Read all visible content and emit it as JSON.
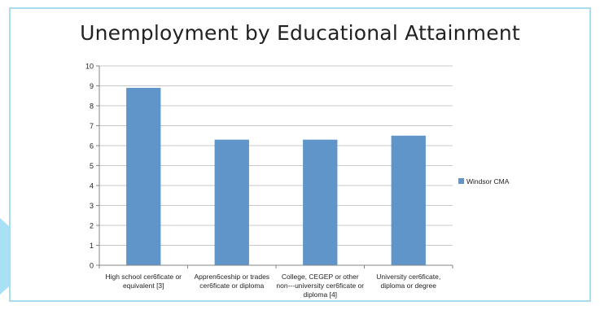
{
  "colors": {
    "series": "#6095c9",
    "frame": "#a9dcef",
    "decor_triangle": "#a8e0f5",
    "axis": "#868686",
    "gridline": "#c8c8c8",
    "text": "#222222"
  },
  "chart_data": {
    "type": "bar",
    "title": "Unemployment by Educational Attainment",
    "categories": [
      [
        "High school cer6ficate or",
        "equivalent [3]"
      ],
      [
        "Appren6ceship or trades",
        "cer6ficate or diploma"
      ],
      [
        "College, CEGEP or other",
        "non---university cer6ficate or",
        "diploma [4]"
      ],
      [
        "University cer6ficate,",
        "diploma or degree"
      ]
    ],
    "series": [
      {
        "name": "Windsor CMA",
        "values": [
          8.9,
          6.3,
          6.3,
          6.5
        ]
      }
    ],
    "ylim": [
      0,
      10
    ],
    "yticks": [
      0,
      1,
      2,
      3,
      4,
      5,
      6,
      7,
      8,
      9,
      10
    ],
    "grid": true,
    "legend_position": "right"
  }
}
